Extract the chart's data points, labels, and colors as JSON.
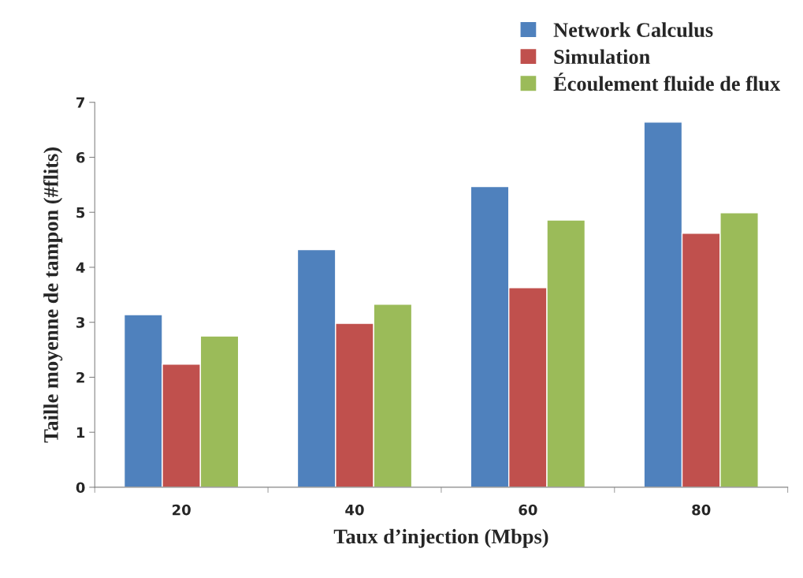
{
  "chart_data": {
    "type": "bar",
    "xlabel": "Taux d’injection (Mbps)",
    "ylabel": "Taille moyenne de tampon (#flits)",
    "categories": [
      "20",
      "40",
      "60",
      "80"
    ],
    "series": [
      {
        "name": "Network Calculus",
        "color": "#4f81bd",
        "values": [
          3.14,
          4.32,
          5.47,
          6.64
        ]
      },
      {
        "name": "Simulation",
        "color": "#c0504d",
        "values": [
          2.24,
          2.98,
          3.63,
          4.62
        ]
      },
      {
        "name": "Écoulement fluide de flux",
        "color": "#9bbb59",
        "values": [
          2.75,
          3.33,
          4.86,
          4.99
        ]
      }
    ],
    "ylim": [
      0,
      7
    ],
    "yticks": [
      0,
      1,
      2,
      3,
      4,
      5,
      6,
      7
    ],
    "grid": false,
    "legend": "top right"
  }
}
